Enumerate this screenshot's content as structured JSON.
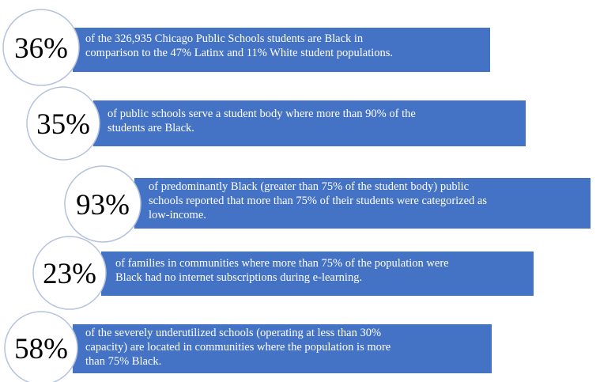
{
  "items": [
    {
      "stat": "36%",
      "lines": [
        "of the 326,935 Chicago Public Schools students are Black in",
        "comparison to the 47% Latinx and 11% White student populations."
      ]
    },
    {
      "stat": "35%",
      "lines": [
        "of public schools serve a student body where more than 90% of the",
        "students are Black."
      ]
    },
    {
      "stat": "93%",
      "lines": [
        "of predominantly Black (greater than 75% of the student body) public",
        "schools reported that more than 75% of their students were categorized as",
        "low-income."
      ]
    },
    {
      "stat": "23%",
      "lines": [
        "of families in communities where more than 75% of the population were",
        "Black had no internet subscriptions during e-learning."
      ]
    },
    {
      "stat": "58%",
      "lines": [
        "of the severely underutilized schools (operating at less than 30%",
        "capacity) are located in communities where the population is more",
        "than 75% Black."
      ]
    }
  ]
}
